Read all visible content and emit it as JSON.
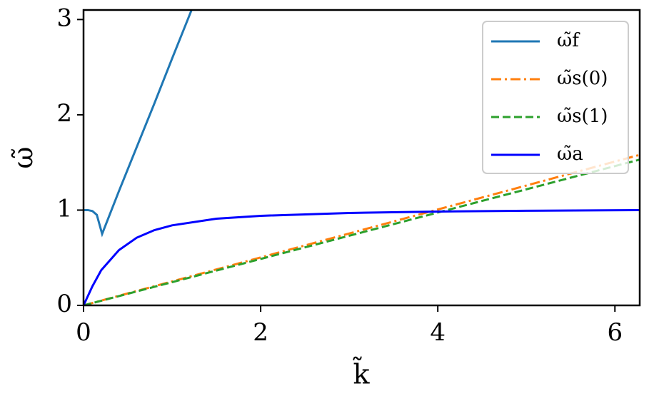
{
  "chart_data": {
    "type": "line",
    "x_label": "k̃",
    "y_label": "ω̃",
    "xlim": [
      0,
      6.28
    ],
    "ylim": [
      0,
      3.1
    ],
    "xticks": [
      0,
      2,
      4,
      6
    ],
    "yticks": [
      0,
      1,
      2,
      3
    ],
    "legend": "upper right",
    "grid": false,
    "series": [
      {
        "name": "ω̃f",
        "color": "#1f77b4",
        "dash": "solid",
        "x": [
          0,
          0.05,
          0.1,
          0.15,
          0.21,
          0.4,
          0.6,
          0.8,
          1.0,
          1.22
        ],
        "values": [
          1,
          1,
          0.99,
          0.95,
          0.75,
          1.2,
          1.66,
          2.12,
          2.59,
          3.1
        ]
      },
      {
        "name": "ω̃s(0)",
        "color": "#ff7f0e",
        "dash": "dashdot",
        "x": [
          0,
          6.28
        ],
        "values": [
          0,
          1.58
        ]
      },
      {
        "name": "ω̃s(1)",
        "color": "#2ca02c",
        "dash": "dashed",
        "x": [
          0,
          6.28
        ],
        "values": [
          0,
          1.53
        ]
      },
      {
        "name": "ω̃a",
        "color": "#0000ff",
        "dash": "solid",
        "x": [
          0,
          0.1,
          0.2,
          0.4,
          0.6,
          0.8,
          1.0,
          1.5,
          2,
          3,
          4,
          5,
          6.28
        ],
        "values": [
          0,
          0.2,
          0.37,
          0.58,
          0.71,
          0.79,
          0.84,
          0.91,
          0.94,
          0.97,
          0.985,
          0.993,
          1.0
        ]
      }
    ]
  }
}
